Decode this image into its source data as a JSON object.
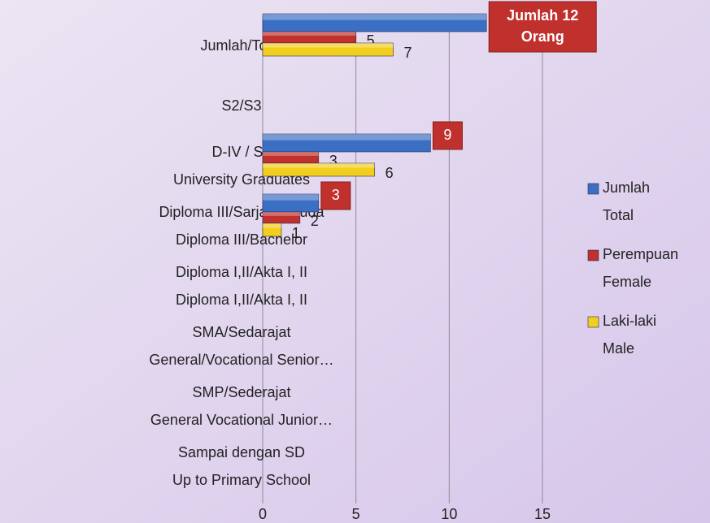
{
  "chart_data": {
    "type": "bar",
    "orientation": "horizontal",
    "categories": [
      [
        "Jumlah/Total"
      ],
      [
        "S2/S3"
      ],
      [
        "D-IV / S1",
        "University Graduates"
      ],
      [
        "Diploma III/Sarjana Muda",
        "Diploma III/Bachelor"
      ],
      [
        "Diploma I,II/Akta I, II",
        "Diploma I,II/Akta I, II"
      ],
      [
        "SMA/Sedarajat",
        "General/Vocational Senior…"
      ],
      [
        "SMP/Sederajat",
        "General Vocational Junior…"
      ],
      [
        "Sampai dengan SD",
        "Up to Primary School"
      ]
    ],
    "series": [
      {
        "name": [
          "Jumlah",
          "Total"
        ],
        "color": "#3a6fc4",
        "values": [
          12,
          null,
          9,
          3,
          null,
          null,
          null,
          null
        ],
        "value_labels": [
          [
            "Jumlah 12",
            "Orang"
          ],
          null,
          [
            "9"
          ],
          [
            "3"
          ],
          null,
          null,
          null,
          null
        ]
      },
      {
        "name": [
          "Perempuan",
          "Female"
        ],
        "color": "#c0302c",
        "values": [
          5,
          null,
          3,
          2,
          null,
          null,
          null,
          null
        ]
      },
      {
        "name": [
          "Laki-laki",
          "Male"
        ],
        "color": "#f2cf1f",
        "values": [
          7,
          null,
          6,
          1,
          null,
          null,
          null,
          null
        ]
      }
    ],
    "xlim": [
      0,
      15
    ],
    "xticks": [
      0,
      5,
      10,
      15
    ],
    "grid": true,
    "legend": "right"
  }
}
